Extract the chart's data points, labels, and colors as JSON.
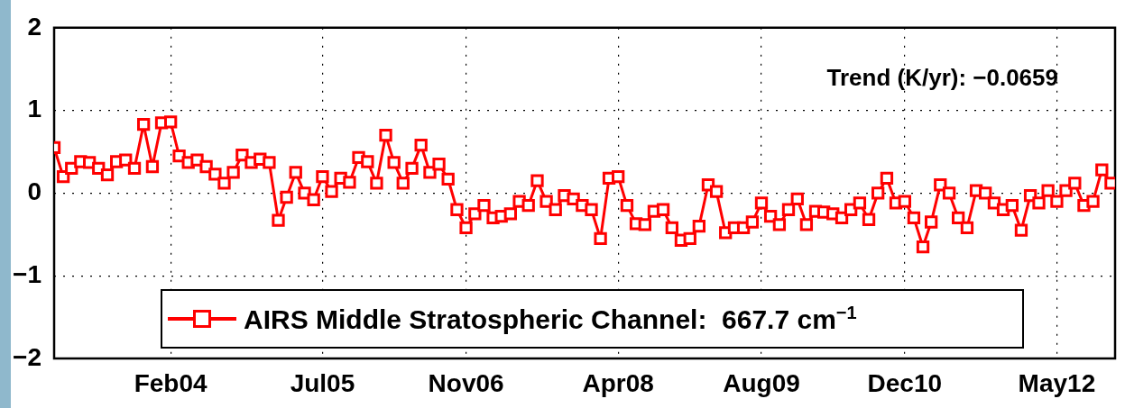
{
  "chart_data": {
    "type": "line",
    "x": [
      "2003-01",
      "2003-02",
      "2003-03",
      "2003-04",
      "2003-05",
      "2003-06",
      "2003-07",
      "2003-08",
      "2003-09",
      "2003-10",
      "2003-11",
      "2003-12",
      "2004-01",
      "2004-02",
      "2004-03",
      "2004-04",
      "2004-05",
      "2004-06",
      "2004-07",
      "2004-08",
      "2004-09",
      "2004-10",
      "2004-11",
      "2004-12",
      "2005-01",
      "2005-02",
      "2005-03",
      "2005-04",
      "2005-05",
      "2005-06",
      "2005-07",
      "2005-08",
      "2005-09",
      "2005-10",
      "2005-11",
      "2005-12",
      "2006-01",
      "2006-02",
      "2006-03",
      "2006-04",
      "2006-05",
      "2006-06",
      "2006-07",
      "2006-08",
      "2006-09",
      "2006-10",
      "2006-11",
      "2006-12",
      "2007-01",
      "2007-02",
      "2007-03",
      "2007-04",
      "2007-05",
      "2007-06",
      "2007-07",
      "2007-08",
      "2007-09",
      "2007-10",
      "2007-11",
      "2007-12",
      "2008-01",
      "2008-02",
      "2008-03",
      "2008-04",
      "2008-05",
      "2008-06",
      "2008-07",
      "2008-08",
      "2008-09",
      "2008-10",
      "2008-11",
      "2008-12",
      "2009-01",
      "2009-02",
      "2009-03",
      "2009-04",
      "2009-05",
      "2009-06",
      "2009-07",
      "2009-08",
      "2009-09",
      "2009-10",
      "2009-11",
      "2009-12",
      "2010-01",
      "2010-02",
      "2010-03",
      "2010-04",
      "2010-05",
      "2010-06",
      "2010-07",
      "2010-08",
      "2010-09",
      "2010-10",
      "2010-11",
      "2010-12",
      "2011-01",
      "2011-02",
      "2011-03",
      "2011-04",
      "2011-05",
      "2011-06",
      "2011-07",
      "2011-08",
      "2011-09",
      "2011-10",
      "2011-11",
      "2011-12",
      "2012-01",
      "2012-02",
      "2012-03",
      "2012-04",
      "2012-05",
      "2012-06",
      "2012-07",
      "2012-08",
      "2012-09",
      "2012-10",
      "2012-11"
    ],
    "series": [
      {
        "name": "AIRS Middle Stratospheric Channel:  667.7 cm$^{−1}$",
        "color": "#ff0000",
        "values": [
          0.55,
          0.2,
          0.3,
          0.38,
          0.37,
          0.3,
          0.22,
          0.38,
          0.4,
          0.3,
          0.83,
          0.32,
          0.85,
          0.86,
          0.45,
          0.37,
          0.4,
          0.32,
          0.23,
          0.12,
          0.25,
          0.46,
          0.37,
          0.41,
          0.37,
          -0.33,
          -0.05,
          0.25,
          0.0,
          -0.08,
          0.2,
          0.02,
          0.18,
          0.13,
          0.43,
          0.38,
          0.12,
          0.7,
          0.37,
          0.12,
          0.3,
          0.58,
          0.25,
          0.35,
          0.17,
          -0.2,
          -0.42,
          -0.25,
          -0.15,
          -0.3,
          -0.28,
          -0.25,
          -0.1,
          -0.15,
          0.15,
          -0.1,
          -0.2,
          -0.03,
          -0.07,
          -0.15,
          -0.2,
          -0.55,
          0.18,
          0.2,
          -0.15,
          -0.37,
          -0.38,
          -0.22,
          -0.2,
          -0.42,
          -0.57,
          -0.55,
          -0.4,
          0.1,
          0.02,
          -0.48,
          -0.42,
          -0.42,
          -0.35,
          -0.12,
          -0.28,
          -0.38,
          -0.2,
          -0.07,
          -0.38,
          -0.22,
          -0.23,
          -0.25,
          -0.3,
          -0.2,
          -0.12,
          -0.32,
          0.0,
          0.18,
          -0.12,
          -0.1,
          -0.3,
          -0.65,
          -0.35,
          0.1,
          0.0,
          -0.3,
          -0.42,
          0.03,
          0.0,
          -0.12,
          -0.2,
          -0.15,
          -0.45,
          -0.03,
          -0.12,
          0.03,
          -0.1,
          0.03,
          0.12,
          -0.15,
          -0.1,
          0.28,
          0.12
        ]
      }
    ],
    "xlim": [
      "2003-01",
      "2012-11-15"
    ],
    "xticks": [
      {
        "value": "2004-02",
        "label": "Feb04"
      },
      {
        "value": "2005-07",
        "label": "Jul05"
      },
      {
        "value": "2006-11",
        "label": "Nov06"
      },
      {
        "value": "2008-04",
        "label": "Apr08"
      },
      {
        "value": "2009-08",
        "label": "Aug09"
      },
      {
        "value": "2010-12",
        "label": "Dec10"
      },
      {
        "value": "2012-05",
        "label": "May12"
      }
    ],
    "ylim": [
      -2,
      2
    ],
    "yticks": [
      {
        "value": -2,
        "label": "−2"
      },
      {
        "value": -1,
        "label": "−1"
      },
      0,
      1,
      2
    ],
    "grid": true,
    "legend": "bottom",
    "marker": "square",
    "line_style": "solid",
    "annotations": [
      "Trend (K/yr): −0.0659"
    ]
  }
}
